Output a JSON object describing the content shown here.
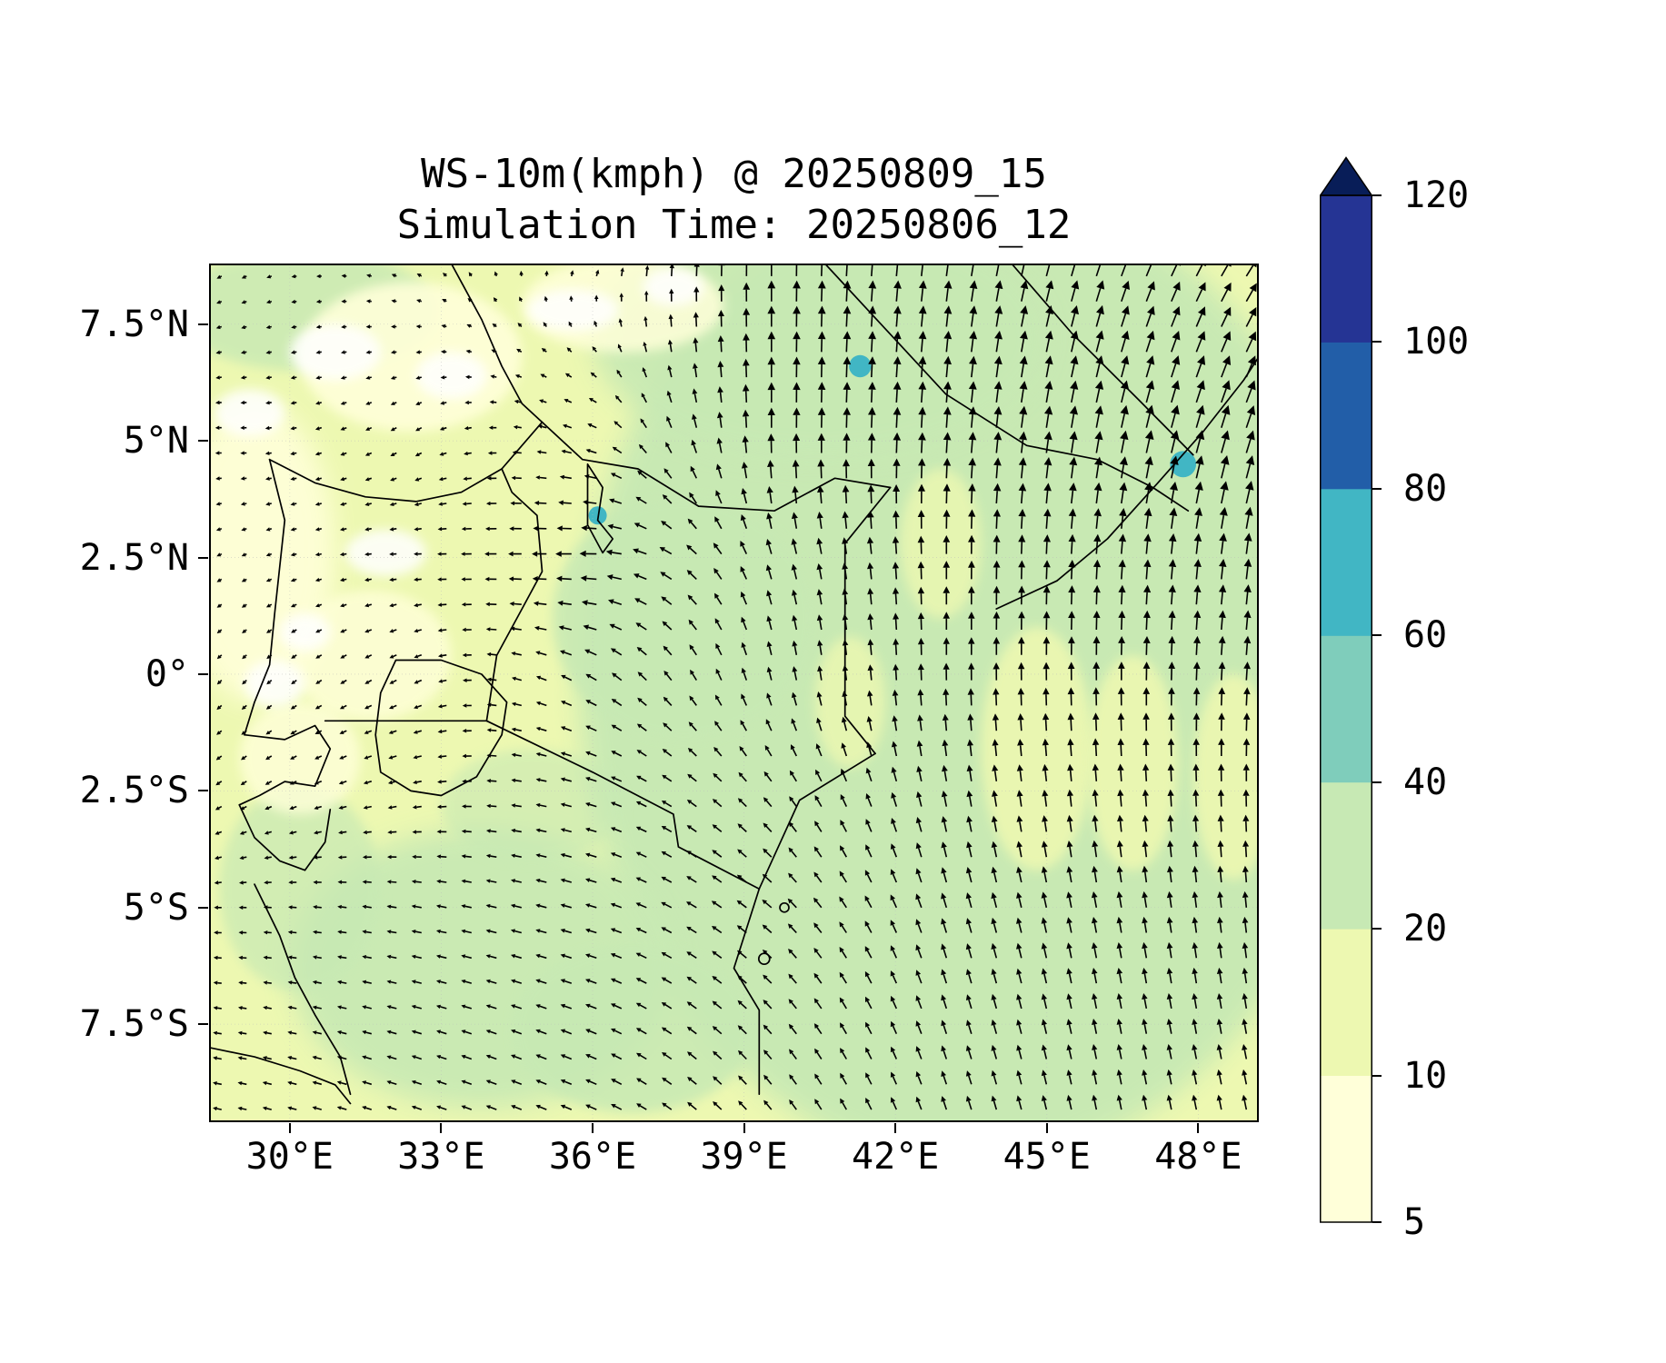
{
  "figure": {
    "title_line1": "WS-10m(kmph) @ 20250809_15",
    "title_line2": "Simulation Time: 20250806_12"
  },
  "chart_data": {
    "type": "quiver+filled_contour_map",
    "variable": "WS-10m",
    "units": "kmph",
    "valid_time": "20250809_15",
    "simulation_time": "20250806_12",
    "lon_range": [
      28.4,
      49.2
    ],
    "lat_range": [
      -9.6,
      8.8
    ],
    "x_axis": {
      "tick_values": [
        30,
        33,
        36,
        39,
        42,
        45,
        48
      ],
      "tick_labels": [
        "30°E",
        "33°E",
        "36°E",
        "39°E",
        "42°E",
        "45°E",
        "48°E"
      ]
    },
    "y_axis": {
      "tick_values": [
        7.5,
        5,
        2.5,
        0,
        -2.5,
        -5,
        -7.5
      ],
      "tick_labels": [
        "7.5°N",
        "5°N",
        "2.5°N",
        "0°",
        "2.5°S",
        "5°S",
        "7.5°S"
      ]
    },
    "colorbar": {
      "levels": [
        5,
        10,
        20,
        40,
        60,
        80,
        100,
        120
      ],
      "tick_labels": [
        "5",
        "10",
        "20",
        "40",
        "60",
        "80",
        "100",
        "120"
      ],
      "colors": [
        "#ffffd9",
        "#edf8b1",
        "#c7e9b4",
        "#7fcdbb",
        "#41b6c4",
        "#225ea8",
        "#253494"
      ],
      "extend_color": "#081d58",
      "extend": "max"
    },
    "quiver_color": "#000000",
    "wind_grid": {
      "description": "Approximate 10m wind vectors (u eastward, v northward, kmph) read from the quiver field; rows ordered north to south",
      "lons": [
        29,
        32.5,
        36,
        39.5,
        43,
        46,
        49.2
      ],
      "lats": [
        8.5,
        5,
        2.5,
        0,
        -2.5,
        -5,
        -8.5
      ],
      "u": [
        [
          -2,
          -2,
          1,
          0,
          2,
          5,
          8
        ],
        [
          -3,
          -3,
          -6,
          0,
          1,
          3,
          6
        ],
        [
          -2,
          -4,
          -12,
          -3,
          0,
          1,
          2
        ],
        [
          -2,
          -4,
          -7,
          -2,
          0,
          0,
          1
        ],
        [
          -3,
          -5,
          -7,
          -5,
          -2,
          -1,
          0
        ],
        [
          -4,
          -6,
          -7,
          -6,
          -3,
          -2,
          -1
        ],
        [
          -5,
          -6,
          -7,
          -5,
          -3,
          -2,
          -2
        ]
      ],
      "v": [
        [
          -1,
          1,
          3,
          15,
          15,
          15,
          12
        ],
        [
          0,
          -2,
          2,
          14,
          15,
          16,
          18
        ],
        [
          -1,
          0,
          0,
          10,
          13,
          14,
          15
        ],
        [
          -2,
          -2,
          4,
          9,
          12,
          13,
          13
        ],
        [
          -2,
          -1,
          2,
          6,
          11,
          12,
          12
        ],
        [
          0,
          1,
          2,
          5,
          10,
          11,
          11
        ],
        [
          1,
          2,
          3,
          6,
          9,
          10,
          10
        ]
      ]
    }
  }
}
